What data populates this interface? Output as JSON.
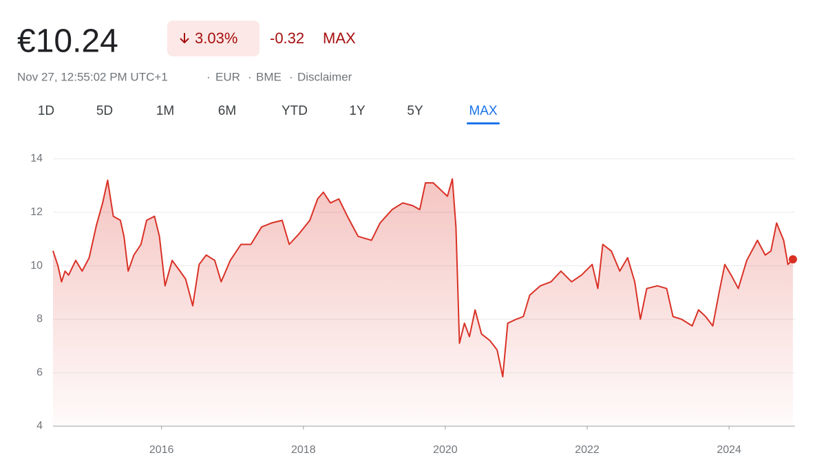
{
  "quote": {
    "price": "€10.24",
    "change_percent": "3.03%",
    "change_abs": "-0.32",
    "period": "MAX",
    "timestamp": "Nov 27, 12:55:02 PM UTC+1",
    "currency": "EUR",
    "exchange": "BME",
    "disclaimer": "Disclaimer"
  },
  "tabs": [
    "1D",
    "5D",
    "1M",
    "6M",
    "YTD",
    "1Y",
    "5Y",
    "MAX"
  ],
  "selected_tab": 7,
  "chart_data": {
    "type": "line",
    "color": "#d93025",
    "x": [
      2014.47,
      2014.54,
      2014.59,
      2014.64,
      2014.69,
      2014.79,
      2014.88,
      2014.98,
      2015.08,
      2015.17,
      2015.24,
      2015.32,
      2015.42,
      2015.47,
      2015.53,
      2015.61,
      2015.71,
      2015.79,
      2015.9,
      2015.97,
      2016.05,
      2016.15,
      2016.26,
      2016.34,
      2016.44,
      2016.53,
      2016.63,
      2016.75,
      2016.84,
      2016.97,
      2017.12,
      2017.26,
      2017.41,
      2017.55,
      2017.7,
      2017.8,
      2017.94,
      2018.09,
      2018.2,
      2018.28,
      2018.38,
      2018.5,
      2018.62,
      2018.77,
      2018.96,
      2019.08,
      2019.25,
      2019.4,
      2019.54,
      2019.64,
      2019.72,
      2019.83,
      2019.93,
      2020.03,
      2020.1,
      2020.15,
      2020.2,
      2020.27,
      2020.34,
      2020.42,
      2020.51,
      2020.63,
      2020.73,
      2020.81,
      2020.88,
      2021.0,
      2021.1,
      2021.19,
      2021.34,
      2021.49,
      2021.63,
      2021.78,
      2021.92,
      2022.07,
      2022.15,
      2022.22,
      2022.34,
      2022.46,
      2022.57,
      2022.67,
      2022.75,
      2022.84,
      2022.99,
      2023.12,
      2023.21,
      2023.33,
      2023.48,
      2023.57,
      2023.67,
      2023.77,
      2023.86,
      2023.94,
      2024.03,
      2024.13,
      2024.25,
      2024.4,
      2024.51,
      2024.59,
      2024.67,
      2024.77,
      2024.83,
      2024.9
    ],
    "values": [
      10.56,
      10.0,
      9.4,
      9.8,
      9.65,
      10.2,
      9.8,
      10.3,
      11.5,
      12.35,
      13.2,
      11.85,
      11.7,
      11.1,
      9.8,
      10.4,
      10.8,
      11.7,
      11.85,
      11.1,
      9.25,
      10.2,
      9.8,
      9.5,
      8.5,
      10.05,
      10.4,
      10.2,
      9.4,
      10.2,
      10.8,
      10.8,
      11.45,
      11.6,
      11.7,
      10.8,
      11.2,
      11.7,
      12.5,
      12.75,
      12.35,
      12.5,
      11.85,
      11.1,
      10.95,
      11.6,
      12.1,
      12.35,
      12.25,
      12.1,
      13.1,
      13.1,
      12.85,
      12.6,
      13.25,
      11.45,
      7.1,
      7.85,
      7.35,
      8.35,
      7.45,
      7.2,
      6.85,
      5.85,
      7.85,
      8.0,
      8.1,
      8.9,
      9.25,
      9.4,
      9.8,
      9.4,
      9.65,
      10.05,
      9.15,
      10.8,
      10.55,
      9.8,
      10.3,
      9.4,
      8.0,
      9.15,
      9.25,
      9.15,
      8.1,
      8.0,
      7.75,
      8.35,
      8.1,
      7.75,
      9.0,
      10.05,
      9.65,
      9.15,
      10.2,
      10.95,
      10.4,
      10.55,
      11.6,
      10.95,
      10.05,
      10.24
    ],
    "xlim": [
      2014.47,
      2024.93
    ],
    "xticks": [
      2016,
      2018,
      2020,
      2022,
      2024
    ],
    "ylim": [
      4,
      14
    ],
    "yticks": [
      4,
      6,
      8,
      10,
      12,
      14
    ],
    "grid": true
  }
}
